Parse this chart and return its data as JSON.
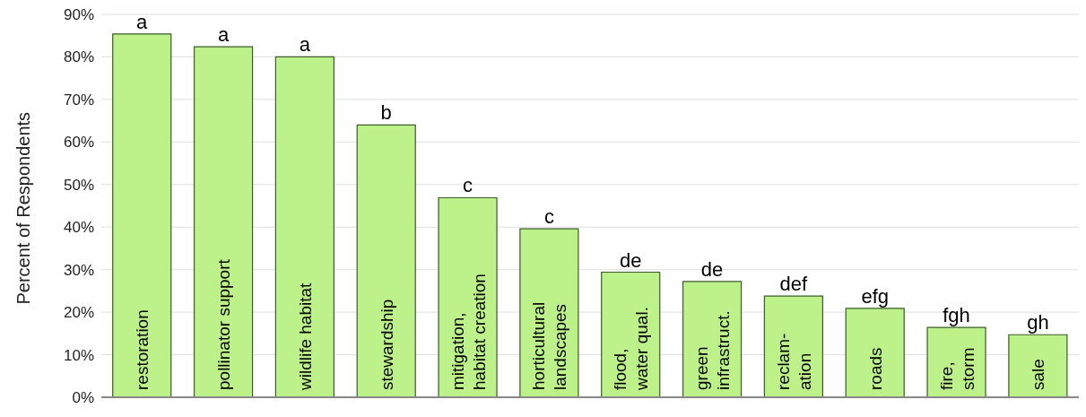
{
  "chart_data": {
    "type": "bar",
    "ylabel": "Percent of Respondents",
    "categories": [
      "restoration",
      "pollinator support",
      "wildlife habitat",
      "stewardship",
      "mitigation,\nhabitat creation",
      "horticultural\nlandscapes",
      "flood,\nwater qual.",
      "green\ninfrastruct.",
      "reclam-\nation",
      "roads",
      "fire,\nstorm",
      "sale"
    ],
    "values": [
      85.4,
      82.4,
      80.0,
      64.0,
      46.9,
      39.6,
      29.4,
      27.2,
      23.8,
      20.9,
      16.4,
      14.7
    ],
    "value_labels": [
      "a",
      "a",
      "a",
      "b",
      "c",
      "c",
      "de",
      "de",
      "def",
      "efg",
      "fgh",
      "gh"
    ],
    "color": "#bdf28a",
    "ylim": [
      0,
      90
    ],
    "yticks": [
      {
        "value": 0,
        "label": "0%"
      },
      {
        "value": 10,
        "label": "10%"
      },
      {
        "value": 20,
        "label": "20%"
      },
      {
        "value": 30,
        "label": "30%"
      },
      {
        "value": 40,
        "label": "40%"
      },
      {
        "value": 50,
        "label": "50%"
      },
      {
        "value": 60,
        "label": "60%"
      },
      {
        "value": 70,
        "label": "70%"
      },
      {
        "value": 80,
        "label": "80%"
      },
      {
        "value": 90,
        "label": "90%"
      }
    ],
    "grid": "y",
    "legend": false
  }
}
